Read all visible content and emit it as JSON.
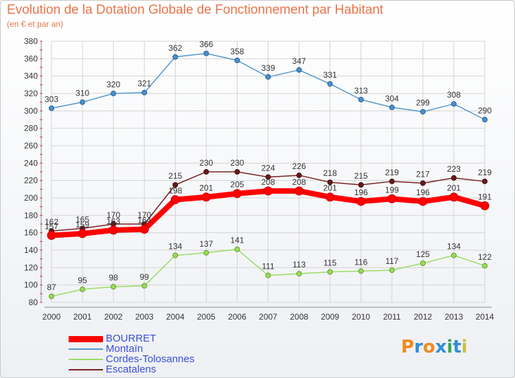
{
  "header": {
    "title": "Evolution de la Dotation Globale de Fonctionnement par Habitant",
    "subtitle": "(en € et par an)"
  },
  "brand": {
    "text": "Proxiti"
  },
  "chart_data": {
    "type": "line",
    "title": "Evolution de la Dotation Globale de Fonctionnement par Habitant",
    "subtitle": "(en € et par an)",
    "x": [
      "2000",
      "2001",
      "2002",
      "2003",
      "2004",
      "2005",
      "2006",
      "2007",
      "2008",
      "2009",
      "2010",
      "2011",
      "2012",
      "2013",
      "2014"
    ],
    "ylim": [
      80,
      380
    ],
    "yticks": [
      80,
      100,
      120,
      140,
      160,
      180,
      200,
      220,
      240,
      260,
      280,
      300,
      320,
      340,
      360,
      380
    ],
    "grid": true,
    "legend_position": "bottom-left",
    "series": [
      {
        "name": "BOURRET",
        "color": "#ff0000",
        "values": [
          157,
          159,
          163,
          164,
          198,
          201,
          205,
          208,
          208,
          201,
          196,
          199,
          196,
          201,
          191
        ]
      },
      {
        "name": "Montaïn",
        "color": "#5599cc",
        "values": [
          303,
          310,
          320,
          321,
          362,
          366,
          358,
          339,
          347,
          331,
          313,
          304,
          299,
          308,
          290
        ]
      },
      {
        "name": "Cordes-Tolosannes",
        "color": "#99dd66",
        "values": [
          87,
          95,
          98,
          99,
          134,
          137,
          141,
          111,
          113,
          115,
          116,
          117,
          125,
          134,
          122
        ]
      },
      {
        "name": "Escatalens",
        "color": "#772222",
        "values": [
          162,
          165,
          170,
          170,
          215,
          230,
          230,
          224,
          226,
          218,
          215,
          219,
          217,
          223,
          219
        ]
      }
    ]
  }
}
